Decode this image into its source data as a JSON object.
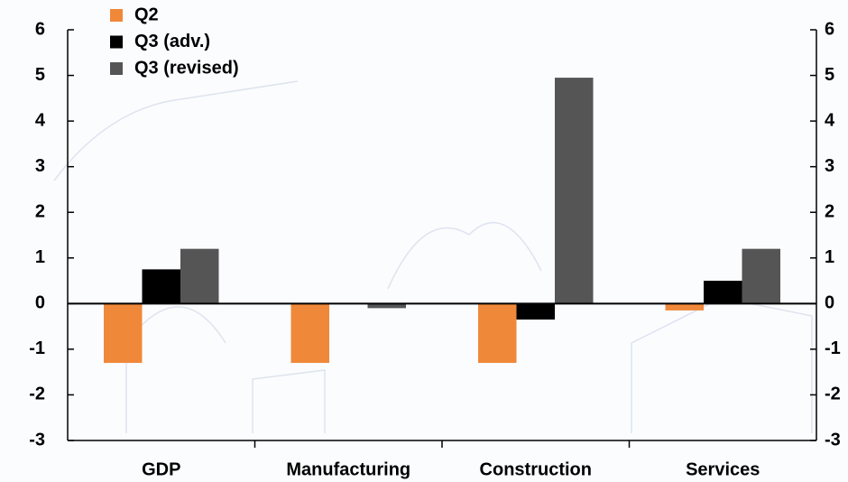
{
  "chart_data": {
    "type": "bar",
    "categories": [
      "GDP",
      "Manufacturing",
      "Construction",
      "Services"
    ],
    "series": [
      {
        "name": "Q2",
        "color": "#f0883a",
        "values": [
          -1.3,
          -1.3,
          -1.3,
          -0.15
        ]
      },
      {
        "name": "Q3 (adv.)",
        "color": "#000000",
        "values": [
          0.75,
          0,
          -0.35,
          0.5
        ]
      },
      {
        "name": "Q3 (revised)",
        "color": "#555555",
        "values": [
          1.2,
          -0.1,
          4.95,
          1.2
        ]
      }
    ],
    "ylim": [
      -3,
      6
    ],
    "yticks": [
      -3,
      -2,
      -1,
      0,
      1,
      2,
      3,
      4,
      5,
      6
    ],
    "y2lim": [
      -3,
      6
    ],
    "y2ticks": [
      -3,
      -2,
      -1,
      0,
      1,
      2,
      3,
      4,
      5,
      6
    ],
    "legend": "top-left",
    "grid": false
  }
}
